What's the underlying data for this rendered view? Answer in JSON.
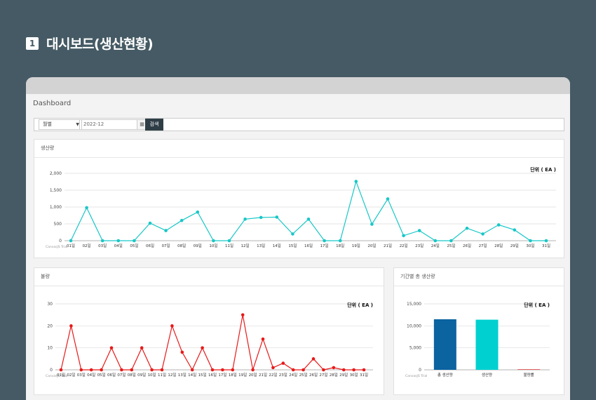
{
  "heading": {
    "number": "1",
    "title": "대시보드(생산현황)"
  },
  "dashboard": {
    "title": "Dashboard"
  },
  "filter": {
    "period_select": "월별",
    "date_value": "2022-12",
    "search_label": "검색"
  },
  "watermark": "CanvasJS Trial",
  "colors": {
    "production": "#19c7c7",
    "defect": "#e81919",
    "bar_total": "#0b63a0",
    "bar_production": "#00d0d0",
    "bar_defect": "#e04040"
  },
  "panels": {
    "production": "생산량",
    "defect": "불량",
    "total": "기간별 총 생산량"
  },
  "chart_data": [
    {
      "type": "line",
      "unit_label": "단위 ( EA )",
      "categories": [
        "01일",
        "02일",
        "03일",
        "04일",
        "05일",
        "06일",
        "07일",
        "08일",
        "09일",
        "10일",
        "11일",
        "12일",
        "13일",
        "14일",
        "15일",
        "16일",
        "17일",
        "18일",
        "19일",
        "20일",
        "21일",
        "22일",
        "23일",
        "24일",
        "25일",
        "26일",
        "27일",
        "28일",
        "29일",
        "30일",
        "31일"
      ],
      "values": [
        0,
        980,
        0,
        0,
        0,
        520,
        300,
        600,
        850,
        0,
        0,
        640,
        690,
        700,
        200,
        640,
        0,
        0,
        1760,
        490,
        1240,
        150,
        300,
        0,
        0,
        370,
        200,
        470,
        320,
        0,
        0
      ],
      "yticks": [
        "0",
        "500",
        "1,000",
        "1,500",
        "2,000"
      ],
      "ylim": [
        0,
        2000
      ],
      "grid": true
    },
    {
      "type": "line",
      "unit_label": "단위 ( EA )",
      "categories": [
        "01일",
        "02일",
        "03일",
        "04일",
        "05일",
        "06일",
        "07일",
        "08일",
        "09일",
        "10일",
        "11일",
        "12일",
        "13일",
        "14일",
        "15일",
        "16일",
        "17일",
        "18일",
        "19일",
        "20일",
        "21일",
        "22일",
        "23일",
        "24일",
        "25일",
        "26일",
        "27일",
        "28일",
        "29일",
        "30일",
        "31일"
      ],
      "values": [
        0,
        20,
        0,
        0,
        0,
        10,
        0,
        0,
        10,
        0,
        0,
        20,
        8,
        0,
        10,
        0,
        0,
        0,
        25,
        0,
        14,
        1,
        3,
        0,
        0,
        5,
        0,
        1,
        0,
        0,
        0
      ],
      "yticks": [
        "0",
        "10",
        "20",
        "30"
      ],
      "ylim": [
        0,
        30
      ],
      "grid": true
    },
    {
      "type": "bar",
      "unit_label": "단위 ( EA )",
      "categories": [
        "총 생산량",
        "생산량",
        "불량률"
      ],
      "values": [
        11500,
        11400,
        130
      ],
      "yticks": [
        "0",
        "5,000",
        "10,000",
        "15,000"
      ],
      "ylim": [
        0,
        15000
      ],
      "grid": true
    }
  ]
}
